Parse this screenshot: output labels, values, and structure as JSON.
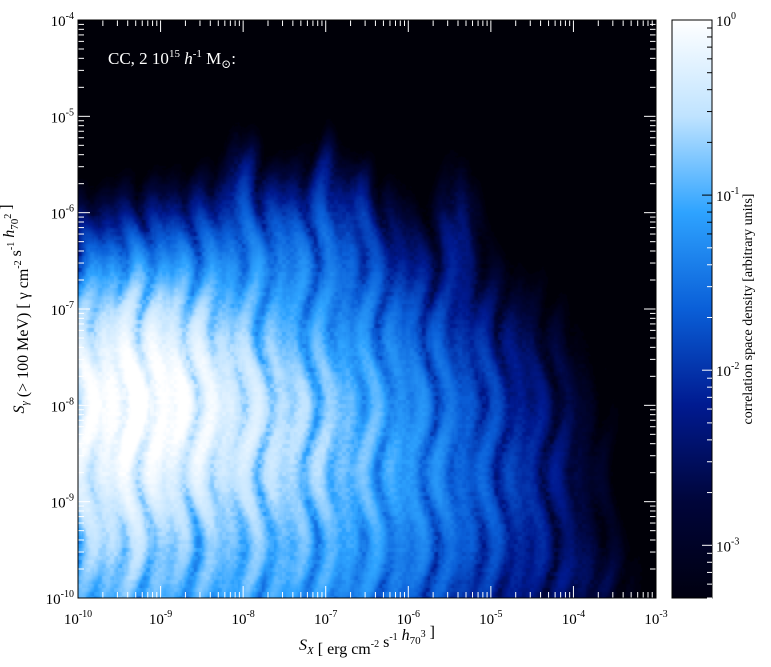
{
  "chart_data": {
    "type": "heatmap",
    "annotation": {
      "text": "CC, 2 10",
      "sup1": "15",
      "mid": " h",
      "sup2": "-1",
      "tail": " M",
      "sub": "⊙",
      "end": ":"
    },
    "x_axis": {
      "scale": "log",
      "range": [
        1e-10,
        0.001
      ],
      "label": {
        "parts": [
          {
            "t": "S",
            "style": "italic"
          },
          {
            "t": "X",
            "style": "italic-sub"
          },
          {
            "t": " [ erg cm",
            "style": "normal"
          },
          {
            "t": "-2",
            "style": "sup"
          },
          {
            "t": " s",
            "style": "normal"
          },
          {
            "t": "-1",
            "style": "sup"
          },
          {
            "t": " h",
            "style": "italic"
          },
          {
            "t": "70",
            "style": "sub"
          },
          {
            "t": "3",
            "style": "sup"
          },
          {
            "t": " ]",
            "style": "normal"
          }
        ]
      },
      "ticks": [
        {
          "exp": "-10",
          "value": 1e-10
        },
        {
          "exp": "-9",
          "value": 1e-09
        },
        {
          "exp": "-8",
          "value": 1e-08
        },
        {
          "exp": "-7",
          "value": 1e-07
        },
        {
          "exp": "-6",
          "value": 1e-06
        },
        {
          "exp": "-5",
          "value": 1e-05
        },
        {
          "exp": "-4",
          "value": 0.0001
        },
        {
          "exp": "-3",
          "value": 0.001
        }
      ]
    },
    "y_axis": {
      "scale": "log",
      "range": [
        1e-10,
        0.0001
      ],
      "label": {
        "parts": [
          {
            "t": "S",
            "style": "italic"
          },
          {
            "t": "γ",
            "style": "italic-sub"
          },
          {
            "t": " (> 100 MeV) [ γ cm",
            "style": "normal"
          },
          {
            "t": "-2",
            "style": "sup"
          },
          {
            "t": " s",
            "style": "normal"
          },
          {
            "t": "-1",
            "style": "sup"
          },
          {
            "t": " h",
            "style": "italic"
          },
          {
            "t": "70",
            "style": "sub"
          },
          {
            "t": "2",
            "style": "sup"
          },
          {
            "t": " ]",
            "style": "normal"
          }
        ]
      },
      "ticks": [
        {
          "exp": "-10",
          "value": 1e-10
        },
        {
          "exp": "-9",
          "value": 1e-09
        },
        {
          "exp": "-8",
          "value": 1e-08
        },
        {
          "exp": "-7",
          "value": 1e-07
        },
        {
          "exp": "-6",
          "value": 1e-06
        },
        {
          "exp": "-5",
          "value": 1e-05
        },
        {
          "exp": "-4",
          "value": 0.0001
        }
      ]
    },
    "colorbar": {
      "scale": "log",
      "range": [
        0.0005,
        1
      ],
      "label": "correlation space density [arbitrary units]",
      "ticks": [
        {
          "exp": "0",
          "value": 1
        },
        {
          "exp": "-1",
          "value": 0.1
        },
        {
          "exp": "-2",
          "value": 0.01
        },
        {
          "exp": "-3",
          "value": 0.001
        }
      ],
      "colors": [
        "#000010",
        "#00053a",
        "#001a90",
        "#0a5fd8",
        "#2ea3ff",
        "#bfe3ff",
        "#ffffff"
      ]
    },
    "density_blobs": [
      {
        "lx": -9.35,
        "ly": -7.9,
        "sx": 0.6,
        "sy": 0.55,
        "d": -0.05
      },
      {
        "lx": -8.8,
        "ly": -8.1,
        "sx": 0.9,
        "sy": 0.65,
        "d": -0.45
      },
      {
        "lx": -8.0,
        "ly": -8.2,
        "sx": 1.1,
        "sy": 0.7,
        "d": -0.85
      },
      {
        "lx": -9.6,
        "ly": -8.9,
        "sx": 0.45,
        "sy": 0.7,
        "d": -0.6
      },
      {
        "lx": -8.5,
        "ly": -9.3,
        "sx": 1.2,
        "sy": 0.6,
        "d": -1.1
      },
      {
        "lx": -7.2,
        "ly": -8.6,
        "sx": 0.9,
        "sy": 0.8,
        "d": -1.25
      },
      {
        "lx": -6.3,
        "ly": -8.9,
        "sx": 0.8,
        "sy": 0.8,
        "d": -1.7
      },
      {
        "lx": -5.2,
        "ly": -9.3,
        "sx": 0.7,
        "sy": 0.6,
        "d": -2.1
      },
      {
        "lx": -8.0,
        "ly": -6.7,
        "sx": 0.6,
        "sy": 0.4,
        "d": -1.55
      },
      {
        "lx": -7.2,
        "ly": -6.5,
        "sx": 0.5,
        "sy": 0.4,
        "d": -1.75
      },
      {
        "lx": -9.2,
        "ly": -7.0,
        "sx": 0.45,
        "sy": 0.35,
        "d": -1.7
      },
      {
        "lx": -6.5,
        "ly": -7.2,
        "sx": 0.5,
        "sy": 0.5,
        "d": -1.9
      },
      {
        "lx": -5.5,
        "ly": -7.6,
        "sx": 0.5,
        "sy": 0.5,
        "d": -2.25
      },
      {
        "lx": -4.7,
        "ly": -8.3,
        "sx": 0.5,
        "sy": 0.7,
        "d": -2.45
      },
      {
        "lx": -8.0,
        "ly": -5.9,
        "sx": 0.12,
        "sy": 0.35,
        "d": -2.1
      },
      {
        "lx": -7.0,
        "ly": -5.9,
        "sx": 0.1,
        "sy": 0.35,
        "d": -2.15
      },
      {
        "lx": -6.6,
        "ly": -6.1,
        "sx": 0.1,
        "sy": 0.3,
        "d": -2.2
      },
      {
        "lx": -5.4,
        "ly": -6.3,
        "sx": 0.14,
        "sy": 0.4,
        "d": -2.25
      },
      {
        "lx": -8.3,
        "ly": -9.85,
        "sx": 1.2,
        "sy": 0.25,
        "d": -1.3
      },
      {
        "lx": -4.0,
        "ly": -9.8,
        "sx": 0.4,
        "sy": 0.25,
        "d": -2.6
      }
    ]
  }
}
